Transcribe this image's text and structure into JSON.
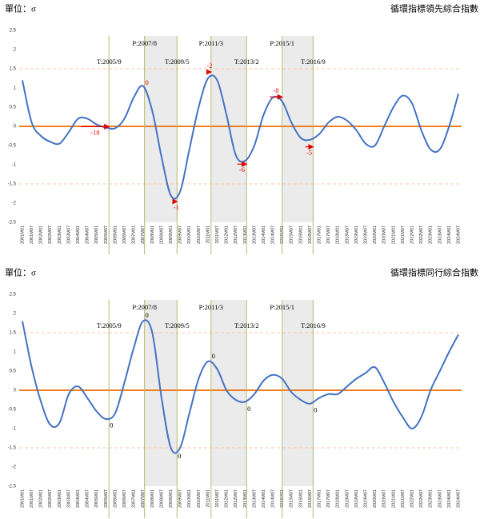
{
  "chart_data": [
    {
      "type": "line",
      "unit_label": "單位：σ",
      "title": "循環指標領先綜合指數",
      "categories": [
        "2001M01",
        "2001M07",
        "2002M01",
        "2002M07",
        "2003M01",
        "2003M07",
        "2004M01",
        "2004M07",
        "2005M01",
        "2005M07",
        "2006M01",
        "2006M07",
        "2007M01",
        "2007M07",
        "2008M01",
        "2008M07",
        "2009M01",
        "2009M07",
        "2010M01",
        "2010M07",
        "2011M01",
        "2011M07",
        "2012M01",
        "2012M07",
        "2013M01",
        "2013M07",
        "2014M01",
        "2014M07",
        "2015M01",
        "2015M07",
        "2016M01",
        "2016M07",
        "2017M01",
        "2017M07",
        "2018M01",
        "2018M07",
        "2019M01",
        "2019M07",
        "2020M01",
        "2020M07",
        "2021M01",
        "2021M07",
        "2022M01",
        "2022M07",
        "2023M01",
        "2023M07",
        "2024M01",
        "2024M07"
      ],
      "values": [
        1.2,
        0.1,
        -0.25,
        -0.4,
        -0.45,
        -0.15,
        0.2,
        0.2,
        0.05,
        -0.03,
        -0.05,
        0.2,
        0.75,
        1.05,
        0.4,
        -0.8,
        -1.8,
        -1.7,
        -0.6,
        0.5,
        1.25,
        1.2,
        0.3,
        -0.75,
        -0.9,
        -0.5,
        0.3,
        0.75,
        0.65,
        0.1,
        -0.3,
        -0.35,
        -0.2,
        0.1,
        0.25,
        0.15,
        -0.1,
        -0.45,
        -0.5,
        0.0,
        0.5,
        0.8,
        0.6,
        -0.1,
        -0.6,
        -0.6,
        0.0,
        0.85
      ],
      "color": "#4472c4",
      "zero_line_color": "#f07f20",
      "reference_lines": [
        1.5,
        -1.5
      ],
      "reference_color": "#f8c9a8",
      "ylim": [
        -2.5,
        2.5
      ],
      "yticks": [
        2.5,
        2,
        1.5,
        1,
        0.5,
        0,
        -0.5,
        -1,
        -1.5,
        -2,
        -2.5
      ],
      "turning_points": [
        "T:2005/9",
        "P:2007/8",
        "T:2009/5",
        "P:2011/3",
        "T:2013/2",
        "P:2015/1",
        "T:2016/9"
      ],
      "lags": [
        -18,
        0,
        -1,
        -2,
        -6,
        -8,
        -5
      ],
      "lag_color": "#e00000",
      "turning_line_color": "#b5b96a",
      "shade_color": "#ebebeb"
    },
    {
      "type": "line",
      "unit_label": "單位：σ",
      "title": "循環指標同行綜合指數",
      "categories": [
        "2001M01",
        "2001M07",
        "2002M01",
        "2002M07",
        "2003M01",
        "2003M07",
        "2004M01",
        "2004M07",
        "2005M01",
        "2005M07",
        "2006M01",
        "2006M07",
        "2007M01",
        "2007M07",
        "2008M01",
        "2008M07",
        "2009M01",
        "2009M07",
        "2010M01",
        "2010M07",
        "2011M01",
        "2011M07",
        "2012M01",
        "2012M07",
        "2013M01",
        "2013M07",
        "2014M01",
        "2014M07",
        "2015M01",
        "2015M07",
        "2016M01",
        "2016M07",
        "2017M01",
        "2017M07",
        "2018M01",
        "2018M07",
        "2019M01",
        "2019M07",
        "2020M01",
        "2020M07",
        "2021M01",
        "2021M07",
        "2022M01",
        "2022M07",
        "2023M01",
        "2023M07",
        "2024M01",
        "2024M07"
      ],
      "values": [
        1.8,
        0.6,
        -0.3,
        -0.9,
        -0.85,
        -0.1,
        0.1,
        -0.2,
        -0.55,
        -0.75,
        -0.6,
        0.2,
        1.1,
        1.8,
        1.5,
        -0.2,
        -1.5,
        -1.5,
        -0.6,
        0.3,
        0.75,
        0.55,
        0.0,
        -0.25,
        -0.3,
        -0.1,
        0.25,
        0.4,
        0.3,
        -0.05,
        -0.25,
        -0.35,
        -0.2,
        -0.1,
        -0.1,
        0.1,
        0.3,
        0.45,
        0.6,
        0.2,
        -0.3,
        -0.7,
        -1.0,
        -0.7,
        0.0,
        0.5,
        1.0,
        1.45
      ],
      "color": "#4472c4",
      "zero_line_color": "#f07f20",
      "reference_lines": [
        1.5,
        -1.5
      ],
      "reference_color": "#f8c9a8",
      "ylim": [
        -2.5,
        2.5
      ],
      "yticks": [
        2.5,
        2,
        1.5,
        1,
        0.5,
        0,
        -0.5,
        -1,
        -1.5,
        -2,
        -2.5
      ],
      "turning_points": [
        "T:2005/9",
        "P:2007/8",
        "T:2009/5",
        "P:2011/3",
        "T:2013/2",
        "P:2015/1",
        "T:2016/9"
      ],
      "lags": [
        0,
        0,
        0,
        0,
        0,
        null,
        0
      ],
      "lag_color": "#000000",
      "turning_line_color": "#b5b96a",
      "shade_color": "#ebebeb"
    }
  ]
}
